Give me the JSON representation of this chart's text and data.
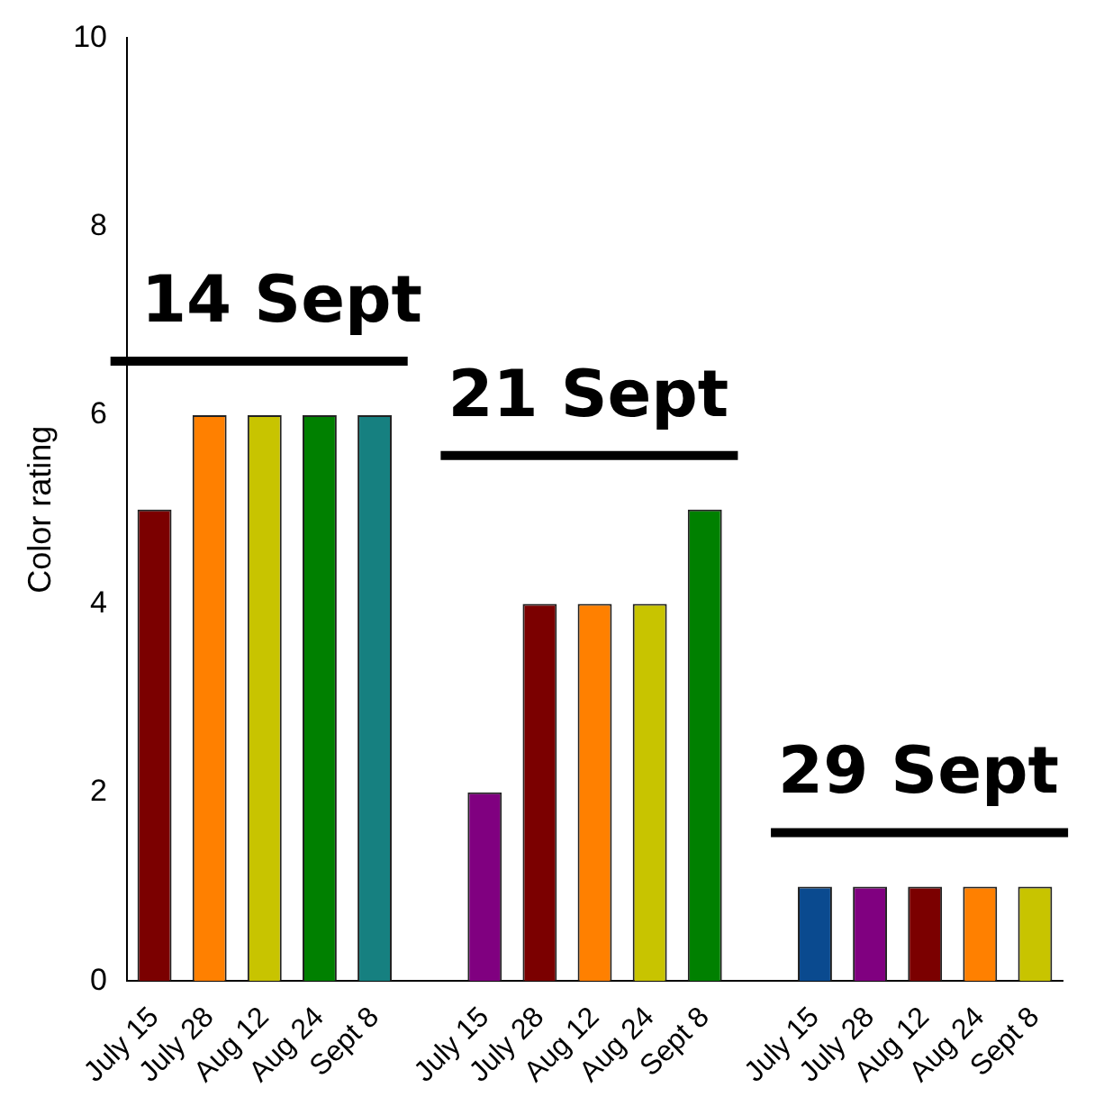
{
  "chart_data": {
    "type": "bar",
    "ylabel": "Color rating",
    "categories": [
      "July 15",
      "July 28",
      "Aug 12",
      "Aug 24",
      "Sept 8",
      null,
      "July 15",
      "July 28",
      "Aug 12",
      "Aug 24",
      "Sept 8",
      null,
      "July 15",
      "July 28",
      "Aug 12",
      "Aug 24",
      "Sept 8"
    ],
    "values": [
      5,
      6,
      6,
      6,
      6,
      null,
      2,
      4,
      4,
      4,
      5,
      null,
      1,
      1,
      1,
      1,
      1
    ],
    "colors": [
      "#7b0000",
      "#ff8000",
      "#c8c400",
      "#008000",
      "#168080",
      null,
      "#800080",
      "#7b0000",
      "#ff8000",
      "#c8c400",
      "#008000",
      null,
      "#0a4a8f",
      "#800080",
      "#7b0000",
      "#ff8000",
      "#c8c400"
    ],
    "ylim": [
      0,
      10
    ],
    "yticks": [
      0,
      2,
      4,
      6,
      8,
      10
    ],
    "grid": false,
    "legend": false,
    "annotations": [
      "14 Sept",
      "21 Sept",
      "29 Sept"
    ]
  }
}
